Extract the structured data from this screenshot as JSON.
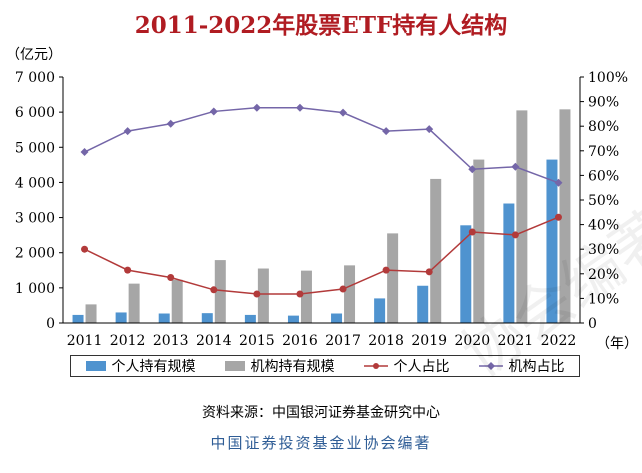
{
  "title": "2011-2022年股票ETF持有人结构",
  "left_unit": "（亿元）",
  "right_unit": "（年）",
  "source": "资料来源：中国银河证券基金研究中心",
  "footer": "中国证券投资基金业协会编著",
  "watermark": "协会编著",
  "colors": {
    "title": "#b01c22",
    "individual_bar": "#4f93cf",
    "institution_bar": "#a6a6a6",
    "individual_line": "#b23a3a",
    "institution_line": "#7466a8"
  },
  "legend": {
    "individual_scale": "个人持有规模",
    "institution_scale": "机构持有规模",
    "individual_share": "个人占比",
    "institution_share": "机构占比"
  },
  "chart_data": {
    "type": "bar",
    "categories": [
      "2011",
      "2012",
      "2013",
      "2014",
      "2015",
      "2016",
      "2017",
      "2018",
      "2019",
      "2020",
      "2021",
      "2022"
    ],
    "y_left": {
      "ylim": [
        0,
        7000
      ],
      "ticks": [
        "0",
        "1 000",
        "2 000",
        "3 000",
        "4 000",
        "5 000",
        "6 000",
        "7 000"
      ]
    },
    "y_right": {
      "ylim": [
        0,
        100
      ],
      "ticks": [
        "0",
        "10%",
        "20%",
        "30%",
        "40%",
        "50%",
        "60%",
        "70%",
        "80%",
        "90%",
        "100%"
      ]
    },
    "series": [
      {
        "name": "个人持有规模",
        "kind": "bar",
        "axis": "left",
        "values": [
          230,
          300,
          270,
          280,
          230,
          210,
          270,
          700,
          1060,
          2780,
          3400,
          4650
        ]
      },
      {
        "name": "机构持有规模",
        "kind": "bar",
        "axis": "left",
        "values": [
          530,
          1120,
          1230,
          1790,
          1550,
          1490,
          1640,
          2550,
          4100,
          4650,
          6050,
          6080
        ]
      },
      {
        "name": "个人占比",
        "kind": "line",
        "axis": "right",
        "values": [
          30.0,
          21.5,
          18.5,
          13.5,
          11.8,
          11.8,
          13.8,
          21.5,
          20.8,
          37.0,
          35.8,
          43.0
        ]
      },
      {
        "name": "机构占比",
        "kind": "line",
        "axis": "right",
        "values": [
          69.5,
          78.0,
          81.0,
          86.0,
          87.5,
          87.5,
          85.5,
          78.0,
          78.8,
          62.5,
          63.5,
          57.0
        ]
      }
    ]
  }
}
